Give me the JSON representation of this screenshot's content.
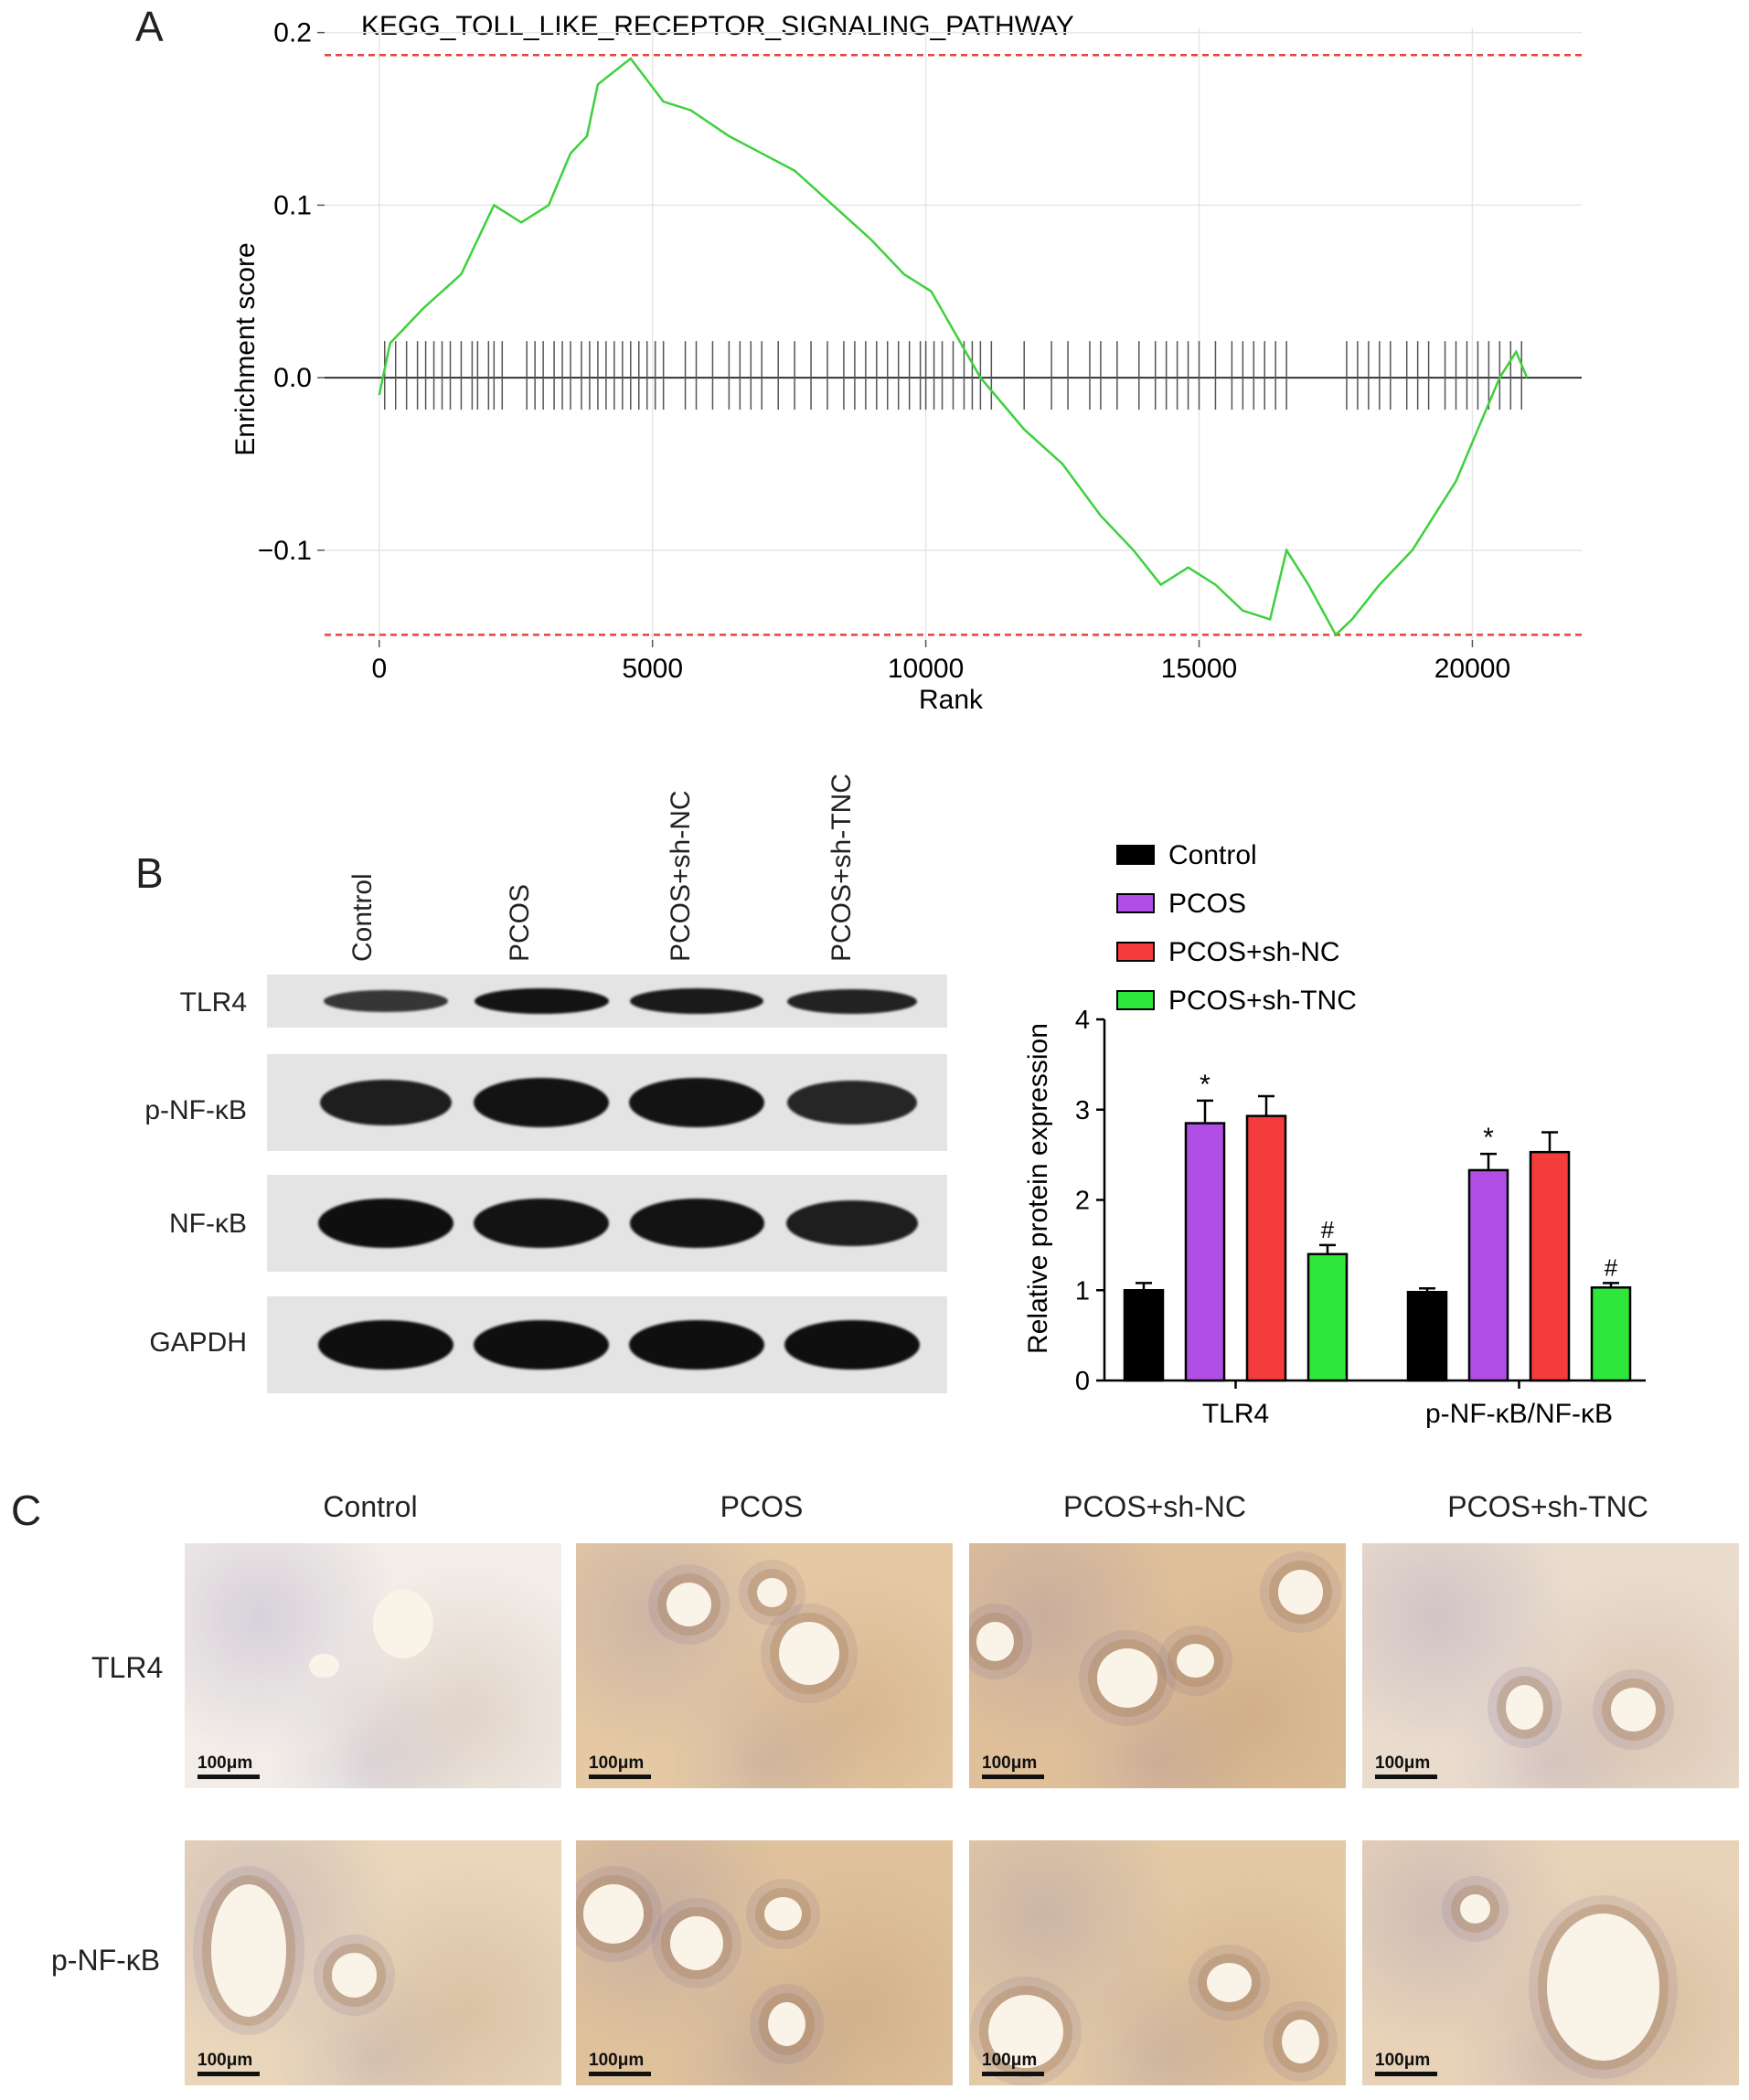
{
  "panel_letters": {
    "a": "A",
    "b": "B",
    "c": "C"
  },
  "chart_data": [
    {
      "id": "gsea",
      "type": "line",
      "title": "KEGG_TOLL_LIKE_RECEPTOR_SIGNALING_PATHWAY",
      "xlabel": "Rank",
      "ylabel": "Enrichment score",
      "xlim": [
        -1000,
        22000
      ],
      "ylim": [
        -0.152,
        0.203
      ],
      "xticks": [
        0,
        5000,
        10000,
        15000,
        20000
      ],
      "xtick_labels": [
        "0",
        "5000",
        "10000",
        "15000",
        "20000"
      ],
      "yticks": [
        -0.1,
        0.0,
        0.1,
        0.2
      ],
      "ytick_labels": [
        "−0.1",
        "0.0",
        "0.1",
        "0.2"
      ],
      "grid": true,
      "threshold_lines": [
        0.187,
        -0.149
      ],
      "colors": {
        "curve": "#3cd13c",
        "threshold": "#e8413c",
        "hits": "#555555",
        "zero": "#333333"
      },
      "series": [
        {
          "x": [
            0,
            200,
            800,
            1500,
            2100,
            2600,
            3100,
            3500,
            3800,
            4000,
            4600,
            5200,
            5700,
            6400,
            7000,
            7600,
            8300,
            9000,
            9600,
            10100,
            11000,
            11800,
            12500,
            13200,
            13800,
            14300,
            14800,
            15300,
            15800,
            16300,
            16600,
            17000,
            17500,
            17800,
            18300,
            18900,
            19300,
            19700,
            20100,
            20500,
            20800,
            21000
          ],
          "y": [
            -0.01,
            0.02,
            0.04,
            0.06,
            0.1,
            0.09,
            0.1,
            0.13,
            0.14,
            0.17,
            0.185,
            0.16,
            0.155,
            0.14,
            0.13,
            0.12,
            0.1,
            0.08,
            0.06,
            0.05,
            0.0,
            -0.03,
            -0.05,
            -0.08,
            -0.1,
            -0.12,
            -0.11,
            -0.12,
            -0.135,
            -0.14,
            -0.1,
            -0.12,
            -0.149,
            -0.14,
            -0.12,
            -0.1,
            -0.08,
            -0.06,
            -0.03,
            0.0,
            0.015,
            0.0
          ]
        }
      ],
      "hit_ranks": [
        100,
        300,
        500,
        700,
        850,
        1000,
        1150,
        1300,
        1500,
        1700,
        1800,
        2000,
        2100,
        2250,
        2700,
        2850,
        3000,
        3200,
        3350,
        3500,
        3700,
        3850,
        4000,
        4150,
        4300,
        4450,
        4600,
        4750,
        4900,
        5050,
        5200,
        5600,
        5800,
        6100,
        6400,
        6600,
        6800,
        7000,
        7300,
        7600,
        7900,
        8200,
        8500,
        8700,
        8900,
        9100,
        9300,
        9500,
        9700,
        9900,
        10000,
        10150,
        10300,
        10500,
        10700,
        10850,
        11000,
        11200,
        11800,
        12300,
        12600,
        13000,
        13200,
        13500,
        13900,
        14200,
        14400,
        14600,
        14800,
        15000,
        15300,
        15600,
        15800,
        16000,
        16200,
        16400,
        16600,
        17700,
        17900,
        18100,
        18300,
        18500,
        18800,
        19000,
        19200,
        19500,
        19700,
        19900,
        20100,
        20300,
        20500,
        20700,
        20900
      ]
    },
    {
      "id": "protein",
      "type": "bar",
      "ylabel": "Relative protein expression",
      "ylim": [
        0,
        4
      ],
      "yticks": [
        0,
        1,
        2,
        3,
        4
      ],
      "categories": [
        "TLR4",
        "p-NF-κB/NF-κB"
      ],
      "series": [
        {
          "name": "Control",
          "color": "#000000",
          "values": [
            1.0,
            0.98
          ],
          "errors": [
            0.08,
            0.04
          ],
          "marks": [
            "",
            ""
          ]
        },
        {
          "name": "PCOS",
          "color": "#b04ee6",
          "values": [
            2.85,
            2.33
          ],
          "errors": [
            0.25,
            0.18
          ],
          "marks": [
            "*",
            "*"
          ]
        },
        {
          "name": "PCOS+sh-NC",
          "color": "#f43c3c",
          "values": [
            2.93,
            2.53
          ],
          "errors": [
            0.22,
            0.22
          ],
          "marks": [
            "",
            ""
          ]
        },
        {
          "name": "PCOS+sh-TNC",
          "color": "#2fe63a",
          "values": [
            1.4,
            1.03
          ],
          "errors": [
            0.1,
            0.05
          ],
          "marks": [
            "#",
            "#"
          ]
        }
      ],
      "legend_position": "top"
    }
  ],
  "western_blot": {
    "lanes": [
      "Control",
      "PCOS",
      "PCOS+sh-NC",
      "PCOS+sh-TNC"
    ],
    "rows": [
      {
        "label": "TLR4",
        "intensity": [
          0.55,
          0.9,
          0.85,
          0.75
        ]
      },
      {
        "label": "p-NF-κB",
        "intensity": [
          0.8,
          0.92,
          0.92,
          0.72
        ]
      },
      {
        "label": "NF-κB",
        "intensity": [
          0.95,
          0.92,
          0.9,
          0.8
        ]
      },
      {
        "label": "GAPDH",
        "intensity": [
          0.95,
          0.95,
          0.95,
          0.95
        ]
      }
    ]
  },
  "ihc": {
    "columns": [
      "Control",
      "PCOS",
      "PCOS+sh-NC",
      "PCOS+sh-TNC"
    ],
    "rows": [
      "TLR4",
      "p-NF-κB"
    ],
    "scale_bar": "100μm",
    "tones": [
      [
        "#f2ede8",
        "#e5c9a4",
        "#dfc09a",
        "#eadccd"
      ],
      [
        "#e9d6bb",
        "#dfc29c",
        "#e3c9a5",
        "#e8d3b8"
      ]
    ]
  }
}
